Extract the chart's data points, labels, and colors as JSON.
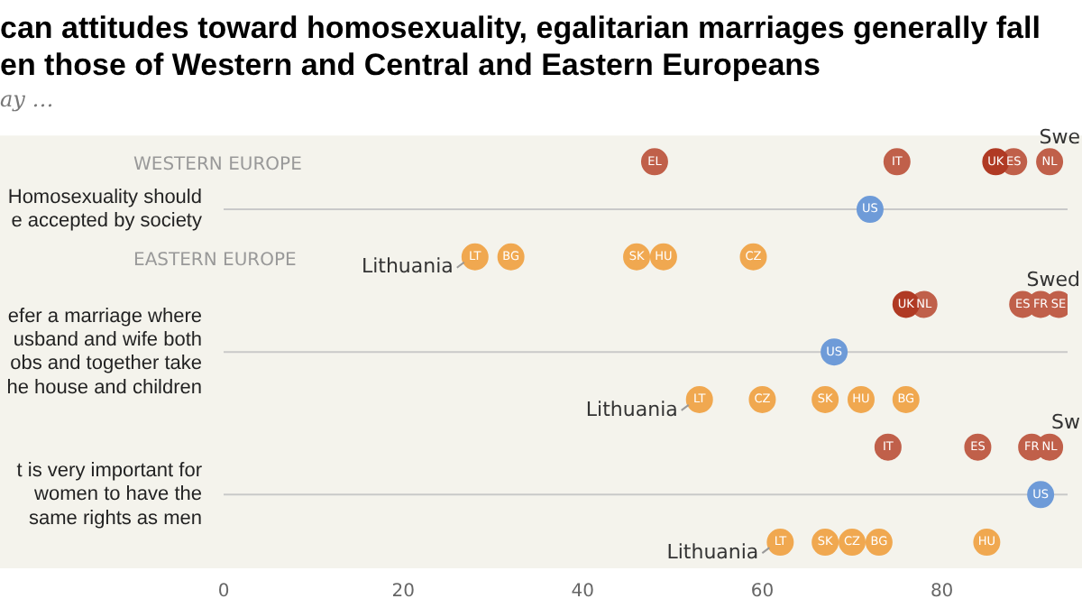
{
  "chart_data": {
    "type": "scatter",
    "orientation": "horizontal",
    "title": [
      "can attitudes toward homosexuality, egalitarian marriages generally fall",
      "en those of Western and Central and Eastern Europeans"
    ],
    "subtitle": "ay …",
    "categories": [
      null,
      "Homosexuality should\ne accepted by society",
      null,
      null,
      "efer a marriage where\nusband and wife both\nobs and together take\nhe house and children",
      null,
      null,
      "t is very important for\nwomen to have the\nsame rights as men",
      null
    ],
    "series": [
      {
        "name": "EL",
        "color": "#c0604a",
        "values": [
          48,
          null,
          null,
          null,
          null,
          null,
          null,
          null,
          null
        ]
      },
      {
        "name": "IT",
        "color": "#c0604a",
        "values": [
          75,
          null,
          null,
          null,
          null,
          null,
          74,
          null,
          null
        ]
      },
      {
        "name": "UK",
        "color": "#b03a24",
        "values": [
          86,
          null,
          null,
          76,
          null,
          null,
          null,
          null,
          null
        ]
      },
      {
        "name": "ES",
        "color": "#c0604a",
        "values": [
          88,
          null,
          null,
          89,
          null,
          null,
          84,
          null,
          null
        ]
      },
      {
        "name": "NL",
        "color": "#c0604a",
        "values": [
          92,
          null,
          null,
          78,
          null,
          null,
          92,
          null,
          null
        ]
      },
      {
        "name": "FR",
        "color": "#c0604a",
        "values": [
          null,
          null,
          null,
          91,
          null,
          null,
          90,
          null,
          null
        ]
      },
      {
        "name": "SE",
        "color": "#c0604a",
        "values": [
          null,
          null,
          null,
          93,
          null,
          null,
          null,
          null,
          null
        ]
      },
      {
        "name": "US",
        "color": "#6e9bd8",
        "values": [
          null,
          72,
          null,
          null,
          68,
          null,
          null,
          91,
          null
        ]
      },
      {
        "name": "LT",
        "color": "#f0a850",
        "values": [
          null,
          null,
          28,
          null,
          null,
          53,
          null,
          null,
          62
        ]
      },
      {
        "name": "BG",
        "color": "#f0a850",
        "values": [
          null,
          null,
          32,
          null,
          null,
          76,
          null,
          null,
          73
        ]
      },
      {
        "name": "SK",
        "color": "#f0a850",
        "values": [
          null,
          null,
          46,
          null,
          null,
          67,
          null,
          null,
          67
        ]
      },
      {
        "name": "HU",
        "color": "#f0a850",
        "values": [
          null,
          null,
          49,
          null,
          null,
          71,
          null,
          null,
          85
        ]
      },
      {
        "name": "CZ",
        "color": "#f0a850",
        "values": [
          null,
          null,
          59,
          null,
          null,
          60,
          null,
          null,
          70
        ]
      }
    ],
    "xlim": [
      0,
      94
    ],
    "xticks": [
      0,
      20,
      40,
      60,
      80
    ],
    "annotations": [
      "WESTERN EUROPE",
      "EASTERN EUROPE",
      {
        "text": "Lithuania",
        "x": 28
      },
      {
        "text": "Lithuania",
        "x": 53
      },
      {
        "text": "Lithuania",
        "x": 62
      },
      "Swe",
      "Swed",
      "Sw"
    ],
    "marker": "circle",
    "legend": false,
    "grid": false
  }
}
